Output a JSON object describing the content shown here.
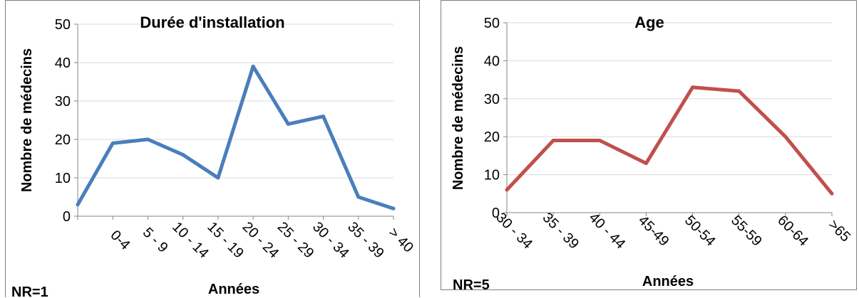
{
  "chart_data": [
    {
      "type": "line",
      "title": "Durée d'installation",
      "xlabel": "Années",
      "ylabel": "Nombre de médecins",
      "ylim": [
        0,
        50
      ],
      "yticks": [
        0,
        10,
        20,
        30,
        40,
        50
      ],
      "grid": true,
      "categories": [
        "",
        "0-4",
        "5 - 9",
        "10 - 14",
        "15 - 19",
        "20 - 24",
        "25 - 29",
        "30 - 34",
        "35 - 39",
        "> 40"
      ],
      "values": [
        3,
        19,
        20,
        16,
        10,
        39,
        24,
        26,
        5,
        2
      ],
      "color": "#4a7ebb",
      "note": "NR=1"
    },
    {
      "type": "line",
      "title": "Age",
      "xlabel": "Années",
      "ylabel": "Nombre de médecins",
      "ylim": [
        0,
        50
      ],
      "yticks": [
        0,
        10,
        20,
        30,
        40,
        50
      ],
      "grid": true,
      "categories": [
        "30 - 34",
        "35 - 39",
        "40 - 44",
        "45-49",
        "50-54",
        "55-59",
        "60-64",
        ">65"
      ],
      "values": [
        6,
        19,
        19,
        13,
        33,
        32,
        20,
        5
      ],
      "color": "#c0504d",
      "note": "NR=5"
    }
  ]
}
